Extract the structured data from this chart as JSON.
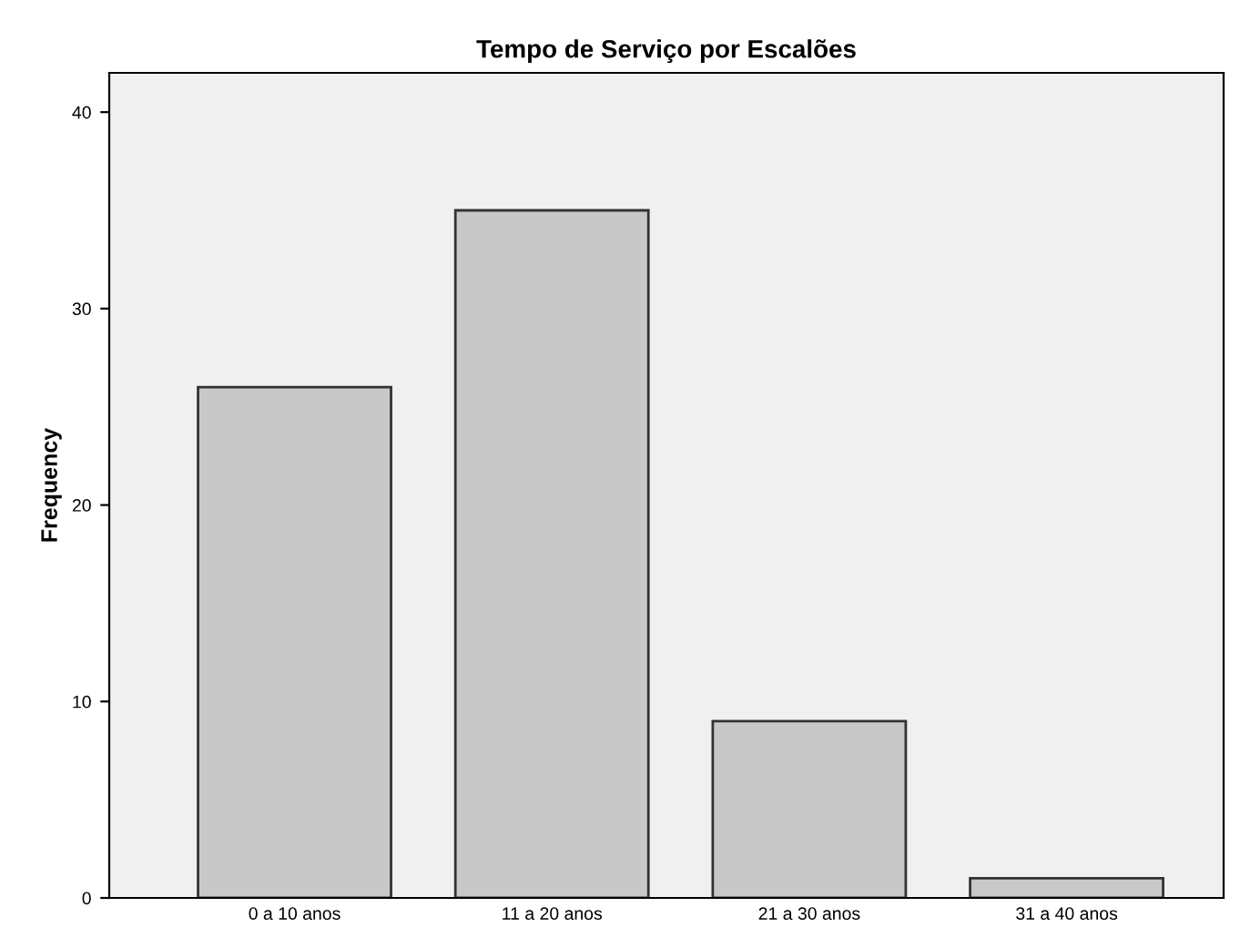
{
  "chart_data": {
    "type": "bar",
    "title": "Tempo de Serviço por Escalões",
    "ylabel": "Frequency",
    "categories": [
      "0 a 10 anos",
      "11 a 20 anos",
      "21 a 30 anos",
      "31 a 40 anos"
    ],
    "values": [
      26,
      35,
      9,
      1
    ],
    "color": "#c8c8c8",
    "ylim": [
      0,
      42
    ],
    "yticks": [
      0,
      10,
      20,
      30,
      40
    ],
    "grid": false,
    "legend": false
  }
}
